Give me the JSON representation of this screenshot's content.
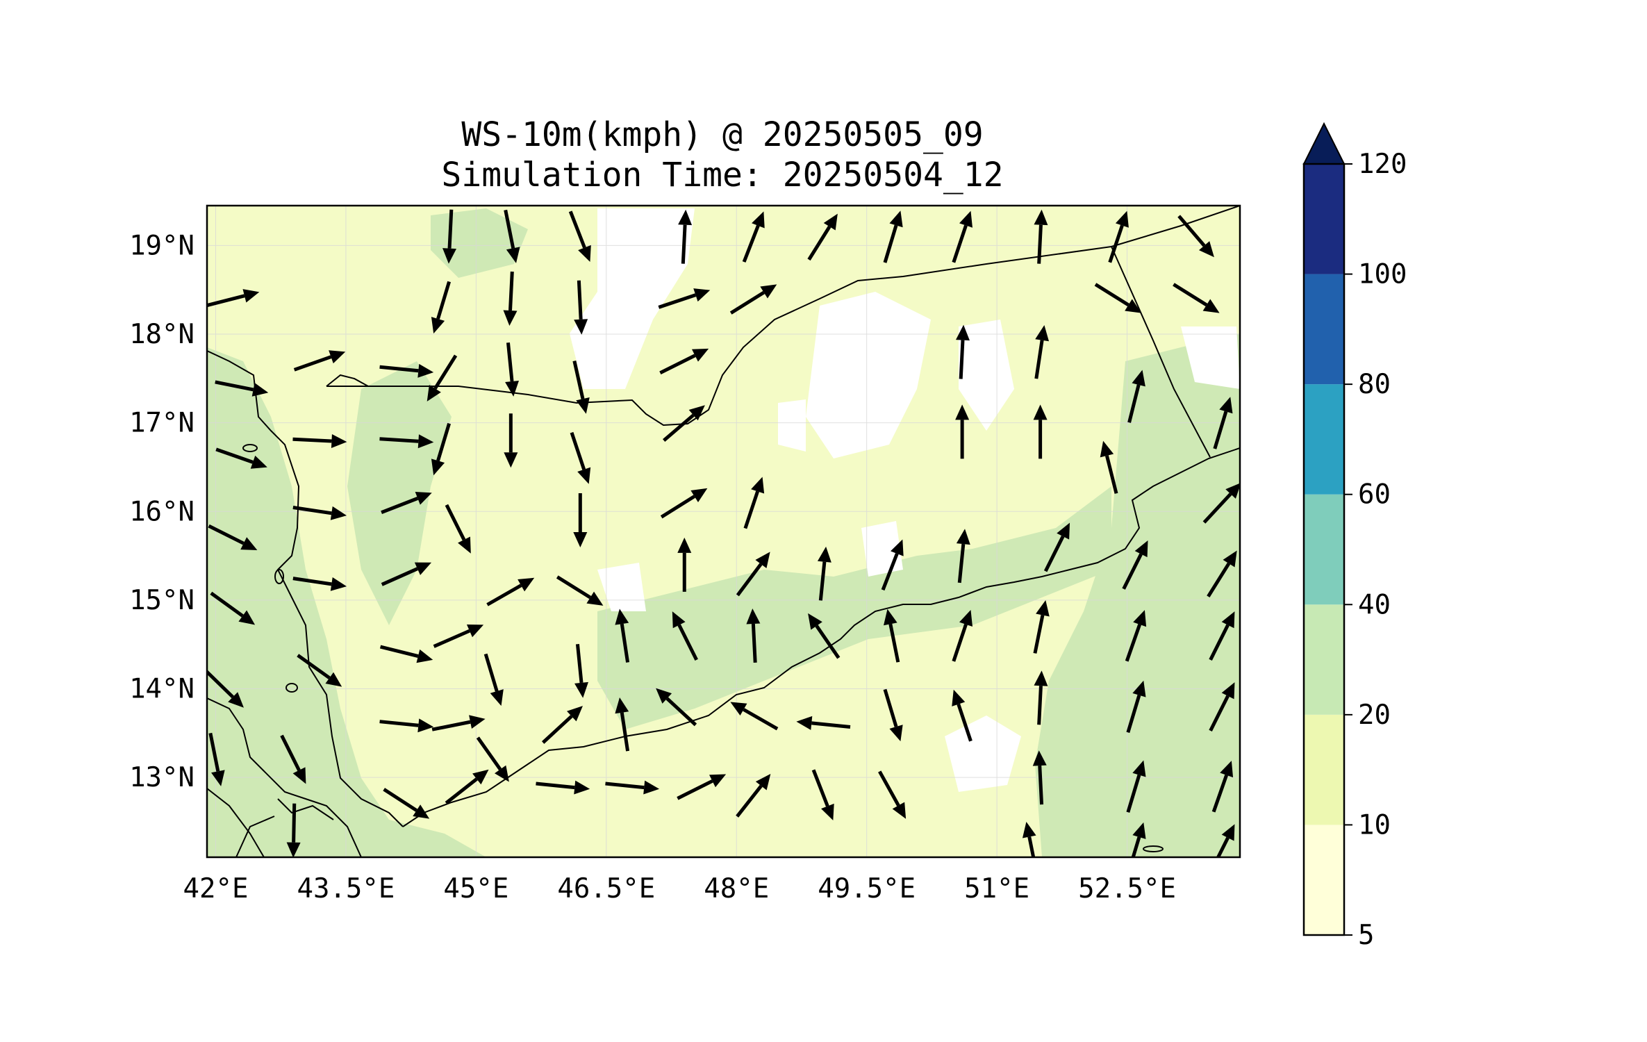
{
  "title": {
    "line1": "WS-10m(kmph) @ 20250505_09",
    "line2": "Simulation Time: 20250504_12"
  },
  "map": {
    "lon_range": [
      41.9,
      53.8
    ],
    "lat_range": [
      12.1,
      19.45
    ],
    "lon_ticks": [
      {
        "value": 42.0,
        "label": "42°E"
      },
      {
        "value": 43.5,
        "label": "43.5°E"
      },
      {
        "value": 45.0,
        "label": "45°E"
      },
      {
        "value": 46.5,
        "label": "46.5°E"
      },
      {
        "value": 48.0,
        "label": "48°E"
      },
      {
        "value": 49.5,
        "label": "49.5°E"
      },
      {
        "value": 51.0,
        "label": "51°E"
      },
      {
        "value": 52.5,
        "label": "52.5°E"
      }
    ],
    "lat_ticks": [
      {
        "value": 19,
        "label": "19°N"
      },
      {
        "value": 18,
        "label": "18°N"
      },
      {
        "value": 17,
        "label": "17°N"
      },
      {
        "value": 16,
        "label": "16°N"
      },
      {
        "value": 15,
        "label": "15°N"
      },
      {
        "value": 14,
        "label": "14°N"
      },
      {
        "value": 13,
        "label": "13°N"
      }
    ],
    "grid": true
  },
  "colorbar": {
    "extend": "max",
    "bounds": [
      5,
      10,
      20,
      40,
      60,
      80,
      100,
      120
    ],
    "labels": [
      "5",
      "10",
      "20",
      "40",
      "60",
      "80",
      "100",
      "120"
    ],
    "colors": [
      "#ffffd9",
      "#edf8b1",
      "#c7e9b4",
      "#7fcdbb",
      "#2ca1c2",
      "#2161ad",
      "#1b2c80"
    ],
    "extend_color": "#081d58"
  },
  "wind_vectors": [
    {
      "lon": 42.2,
      "lat": 18.4,
      "u": 0.86,
      "v": 0.22
    },
    {
      "lon": 42.3,
      "lat": 17.4,
      "u": 1.0,
      "v": -0.2
    },
    {
      "lon": 42.3,
      "lat": 16.6,
      "u": 1.0,
      "v": -0.35
    },
    {
      "lon": 42.2,
      "lat": 15.7,
      "u": 1.0,
      "v": -0.5
    },
    {
      "lon": 42.2,
      "lat": 14.9,
      "u": 0.9,
      "v": -0.65
    },
    {
      "lon": 42.1,
      "lat": 14.0,
      "u": 0.72,
      "v": -0.7
    },
    {
      "lon": 42.0,
      "lat": 13.2,
      "u": 0.2,
      "v": -1.0
    },
    {
      "lon": 43.2,
      "lat": 17.7,
      "u": 0.85,
      "v": 0.3
    },
    {
      "lon": 43.2,
      "lat": 16.8,
      "u": 1.0,
      "v": -0.05
    },
    {
      "lon": 43.2,
      "lat": 16.0,
      "u": 1.0,
      "v": -0.15
    },
    {
      "lon": 43.2,
      "lat": 15.2,
      "u": 1.0,
      "v": -0.15
    },
    {
      "lon": 43.2,
      "lat": 14.2,
      "u": 0.7,
      "v": -0.5
    },
    {
      "lon": 42.9,
      "lat": 13.2,
      "u": 0.4,
      "v": -0.8
    },
    {
      "lon": 42.9,
      "lat": 12.4,
      "u": -0.02,
      "v": -1.0
    },
    {
      "lon": 44.2,
      "lat": 17.6,
      "u": 1.0,
      "v": -0.1
    },
    {
      "lon": 44.2,
      "lat": 16.8,
      "u": 0.8,
      "v": -0.05
    },
    {
      "lon": 44.2,
      "lat": 16.1,
      "u": 0.9,
      "v": 0.35
    },
    {
      "lon": 44.2,
      "lat": 15.3,
      "u": 0.9,
      "v": 0.4
    },
    {
      "lon": 44.2,
      "lat": 14.4,
      "u": 0.8,
      "v": -0.2
    },
    {
      "lon": 44.2,
      "lat": 13.6,
      "u": 1.0,
      "v": -0.1
    },
    {
      "lon": 44.2,
      "lat": 12.7,
      "u": 0.85,
      "v": -0.55
    },
    {
      "lon": 44.7,
      "lat": 19.1,
      "u": -0.05,
      "v": -1.0
    },
    {
      "lon": 44.6,
      "lat": 18.3,
      "u": -0.3,
      "v": -1.0
    },
    {
      "lon": 44.6,
      "lat": 17.5,
      "u": -0.5,
      "v": -0.8
    },
    {
      "lon": 44.6,
      "lat": 16.7,
      "u": -0.3,
      "v": -1.0
    },
    {
      "lon": 44.8,
      "lat": 15.8,
      "u": 0.4,
      "v": -0.8
    },
    {
      "lon": 44.8,
      "lat": 14.6,
      "u": 0.8,
      "v": 0.35
    },
    {
      "lon": 44.8,
      "lat": 13.6,
      "u": 1.0,
      "v": 0.2
    },
    {
      "lon": 44.9,
      "lat": 12.9,
      "u": 0.7,
      "v": 0.55
    },
    {
      "lon": 45.4,
      "lat": 19.1,
      "u": 0.2,
      "v": -1.0
    },
    {
      "lon": 45.4,
      "lat": 18.4,
      "u": -0.05,
      "v": -1.0
    },
    {
      "lon": 45.4,
      "lat": 17.6,
      "u": 0.1,
      "v": -1.0
    },
    {
      "lon": 45.4,
      "lat": 16.8,
      "u": 0.0,
      "v": -1.0
    },
    {
      "lon": 45.4,
      "lat": 15.1,
      "u": 0.7,
      "v": 0.4
    },
    {
      "lon": 45.2,
      "lat": 14.1,
      "u": 0.3,
      "v": -1.0
    },
    {
      "lon": 45.2,
      "lat": 13.2,
      "u": 0.6,
      "v": -0.85
    },
    {
      "lon": 46.2,
      "lat": 19.1,
      "u": 0.35,
      "v": -0.9
    },
    {
      "lon": 46.2,
      "lat": 18.3,
      "u": 0.05,
      "v": -1.0
    },
    {
      "lon": 46.2,
      "lat": 17.4,
      "u": 0.2,
      "v": -0.9
    },
    {
      "lon": 46.2,
      "lat": 16.6,
      "u": 0.3,
      "v": -0.9
    },
    {
      "lon": 46.2,
      "lat": 15.9,
      "u": 0.0,
      "v": -1.0
    },
    {
      "lon": 46.2,
      "lat": 15.1,
      "u": 0.8,
      "v": -0.5
    },
    {
      "lon": 46.2,
      "lat": 14.2,
      "u": 0.1,
      "v": -1.0
    },
    {
      "lon": 46.0,
      "lat": 13.6,
      "u": 0.65,
      "v": 0.6
    },
    {
      "lon": 46.0,
      "lat": 12.9,
      "u": 1.0,
      "v": -0.1
    },
    {
      "lon": 46.7,
      "lat": 14.6,
      "u": -0.15,
      "v": 1.0
    },
    {
      "lon": 46.7,
      "lat": 13.6,
      "u": -0.15,
      "v": 1.0
    },
    {
      "lon": 46.8,
      "lat": 12.9,
      "u": 1.0,
      "v": -0.1
    },
    {
      "lon": 47.4,
      "lat": 19.1,
      "u": 0.05,
      "v": 1.0
    },
    {
      "lon": 47.4,
      "lat": 18.4,
      "u": 0.9,
      "v": 0.3
    },
    {
      "lon": 47.4,
      "lat": 17.7,
      "u": 0.8,
      "v": 0.4
    },
    {
      "lon": 47.4,
      "lat": 17.0,
      "u": 0.7,
      "v": 0.6
    },
    {
      "lon": 47.4,
      "lat": 16.1,
      "u": 0.8,
      "v": 0.5
    },
    {
      "lon": 47.4,
      "lat": 15.4,
      "u": 0.0,
      "v": 1.0
    },
    {
      "lon": 47.4,
      "lat": 14.6,
      "u": -0.45,
      "v": 0.9
    },
    {
      "lon": 47.3,
      "lat": 13.8,
      "u": -0.65,
      "v": 0.6
    },
    {
      "lon": 47.6,
      "lat": 12.9,
      "u": 0.8,
      "v": 0.4
    },
    {
      "lon": 48.2,
      "lat": 19.1,
      "u": 0.35,
      "v": 0.9
    },
    {
      "lon": 48.2,
      "lat": 18.4,
      "u": 0.8,
      "v": 0.5
    },
    {
      "lon": 48.2,
      "lat": 16.1,
      "u": 0.3,
      "v": 0.9
    },
    {
      "lon": 48.2,
      "lat": 15.3,
      "u": 0.6,
      "v": 0.8
    },
    {
      "lon": 48.2,
      "lat": 14.6,
      "u": -0.05,
      "v": 1.0
    },
    {
      "lon": 48.2,
      "lat": 13.7,
      "u": -0.7,
      "v": 0.4
    },
    {
      "lon": 48.2,
      "lat": 12.8,
      "u": 0.55,
      "v": 0.7
    },
    {
      "lon": 49.0,
      "lat": 19.1,
      "u": 0.5,
      "v": 0.8
    },
    {
      "lon": 49.0,
      "lat": 15.3,
      "u": 0.1,
      "v": 1.0
    },
    {
      "lon": 49.0,
      "lat": 14.6,
      "u": -0.55,
      "v": 0.8
    },
    {
      "lon": 49.0,
      "lat": 13.6,
      "u": -1.0,
      "v": 0.1
    },
    {
      "lon": 49.0,
      "lat": 12.8,
      "u": 0.35,
      "v": -0.9
    },
    {
      "lon": 49.8,
      "lat": 19.1,
      "u": 0.3,
      "v": 1.0
    },
    {
      "lon": 49.8,
      "lat": 15.4,
      "u": 0.35,
      "v": 0.9
    },
    {
      "lon": 49.8,
      "lat": 14.6,
      "u": -0.2,
      "v": 1.0
    },
    {
      "lon": 49.8,
      "lat": 13.7,
      "u": 0.3,
      "v": -1.0
    },
    {
      "lon": 49.8,
      "lat": 12.8,
      "u": 0.5,
      "v": -0.9
    },
    {
      "lon": 50.6,
      "lat": 19.1,
      "u": 0.3,
      "v": 0.9
    },
    {
      "lon": 50.6,
      "lat": 17.8,
      "u": 0.05,
      "v": 1.0
    },
    {
      "lon": 50.6,
      "lat": 16.9,
      "u": 0.0,
      "v": 1.0
    },
    {
      "lon": 50.6,
      "lat": 15.5,
      "u": 0.1,
      "v": 1.0
    },
    {
      "lon": 50.6,
      "lat": 14.6,
      "u": 0.3,
      "v": 0.9
    },
    {
      "lon": 50.6,
      "lat": 13.7,
      "u": -0.3,
      "v": 0.9
    },
    {
      "lon": 51.5,
      "lat": 19.1,
      "u": 0.05,
      "v": 1.0
    },
    {
      "lon": 51.5,
      "lat": 17.8,
      "u": 0.15,
      "v": 1.0
    },
    {
      "lon": 51.5,
      "lat": 16.9,
      "u": 0.0,
      "v": 1.0
    },
    {
      "lon": 51.7,
      "lat": 15.6,
      "u": 0.45,
      "v": 0.9
    },
    {
      "lon": 51.5,
      "lat": 14.7,
      "u": 0.2,
      "v": 1.0
    },
    {
      "lon": 51.5,
      "lat": 13.9,
      "u": 0.05,
      "v": 1.0
    },
    {
      "lon": 51.5,
      "lat": 13.0,
      "u": -0.05,
      "v": 1.0
    },
    {
      "lon": 51.4,
      "lat": 12.2,
      "u": -0.2,
      "v": 1.0
    },
    {
      "lon": 52.4,
      "lat": 19.1,
      "u": 0.3,
      "v": 0.9
    },
    {
      "lon": 52.4,
      "lat": 18.4,
      "u": 0.8,
      "v": -0.5
    },
    {
      "lon": 52.3,
      "lat": 16.5,
      "u": -0.25,
      "v": 1.0
    },
    {
      "lon": 52.6,
      "lat": 17.3,
      "u": 0.25,
      "v": 1.0
    },
    {
      "lon": 52.6,
      "lat": 15.4,
      "u": 0.45,
      "v": 0.9
    },
    {
      "lon": 52.6,
      "lat": 14.6,
      "u": 0.35,
      "v": 1.0
    },
    {
      "lon": 52.6,
      "lat": 13.8,
      "u": 0.3,
      "v": 1.0
    },
    {
      "lon": 52.6,
      "lat": 12.9,
      "u": 0.3,
      "v": 1.0
    },
    {
      "lon": 52.6,
      "lat": 12.2,
      "u": 0.3,
      "v": 1.0
    },
    {
      "lon": 53.3,
      "lat": 19.1,
      "u": 0.6,
      "v": -0.7
    },
    {
      "lon": 53.3,
      "lat": 18.4,
      "u": 0.8,
      "v": -0.5
    },
    {
      "lon": 53.6,
      "lat": 17.0,
      "u": 0.3,
      "v": 1.0
    },
    {
      "lon": 53.6,
      "lat": 16.1,
      "u": 0.65,
      "v": 0.7
    },
    {
      "lon": 53.6,
      "lat": 15.3,
      "u": 0.5,
      "v": 0.8
    },
    {
      "lon": 53.6,
      "lat": 14.6,
      "u": 0.45,
      "v": 0.9
    },
    {
      "lon": 53.6,
      "lat": 13.8,
      "u": 0.45,
      "v": 0.9
    },
    {
      "lon": 53.6,
      "lat": 12.9,
      "u": 0.35,
      "v": 1.0
    },
    {
      "lon": 53.6,
      "lat": 12.2,
      "u": 0.45,
      "v": 0.9
    }
  ]
}
